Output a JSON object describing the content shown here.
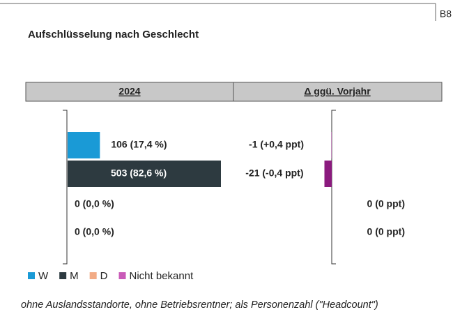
{
  "page_id": "B8",
  "chart_data": {
    "type": "bar",
    "orientation": "horizontal",
    "title": "Aufschlüsselung nach Geschlecht",
    "categories": [
      "W",
      "M",
      "D",
      "Nicht bekannt"
    ],
    "colors": [
      "#1a9ad6",
      "#2d3a40",
      "#f2ab85",
      "#c95bb8"
    ],
    "series": [
      {
        "name": "2024",
        "values": [
          106,
          503,
          0,
          0
        ],
        "value_labels": [
          "106 (17,4 %)",
          "503 (82,6 %)",
          "0 (0,0 %)",
          "0 (0,0 %)"
        ]
      },
      {
        "name": "Δ ggü. Vorjahr",
        "color": "#8b1a7e",
        "values": [
          -1,
          -21,
          0,
          0
        ],
        "value_labels": [
          "-1 (+0,4 ppt)",
          "-21 (-0,4 ppt)",
          "0 (0 ppt)",
          "0 (0 ppt)"
        ]
      }
    ],
    "footnote": "ohne Auslandsstandorte, ohne Betriebsrentner; als Personenzahl (\"Headcount\")"
  }
}
